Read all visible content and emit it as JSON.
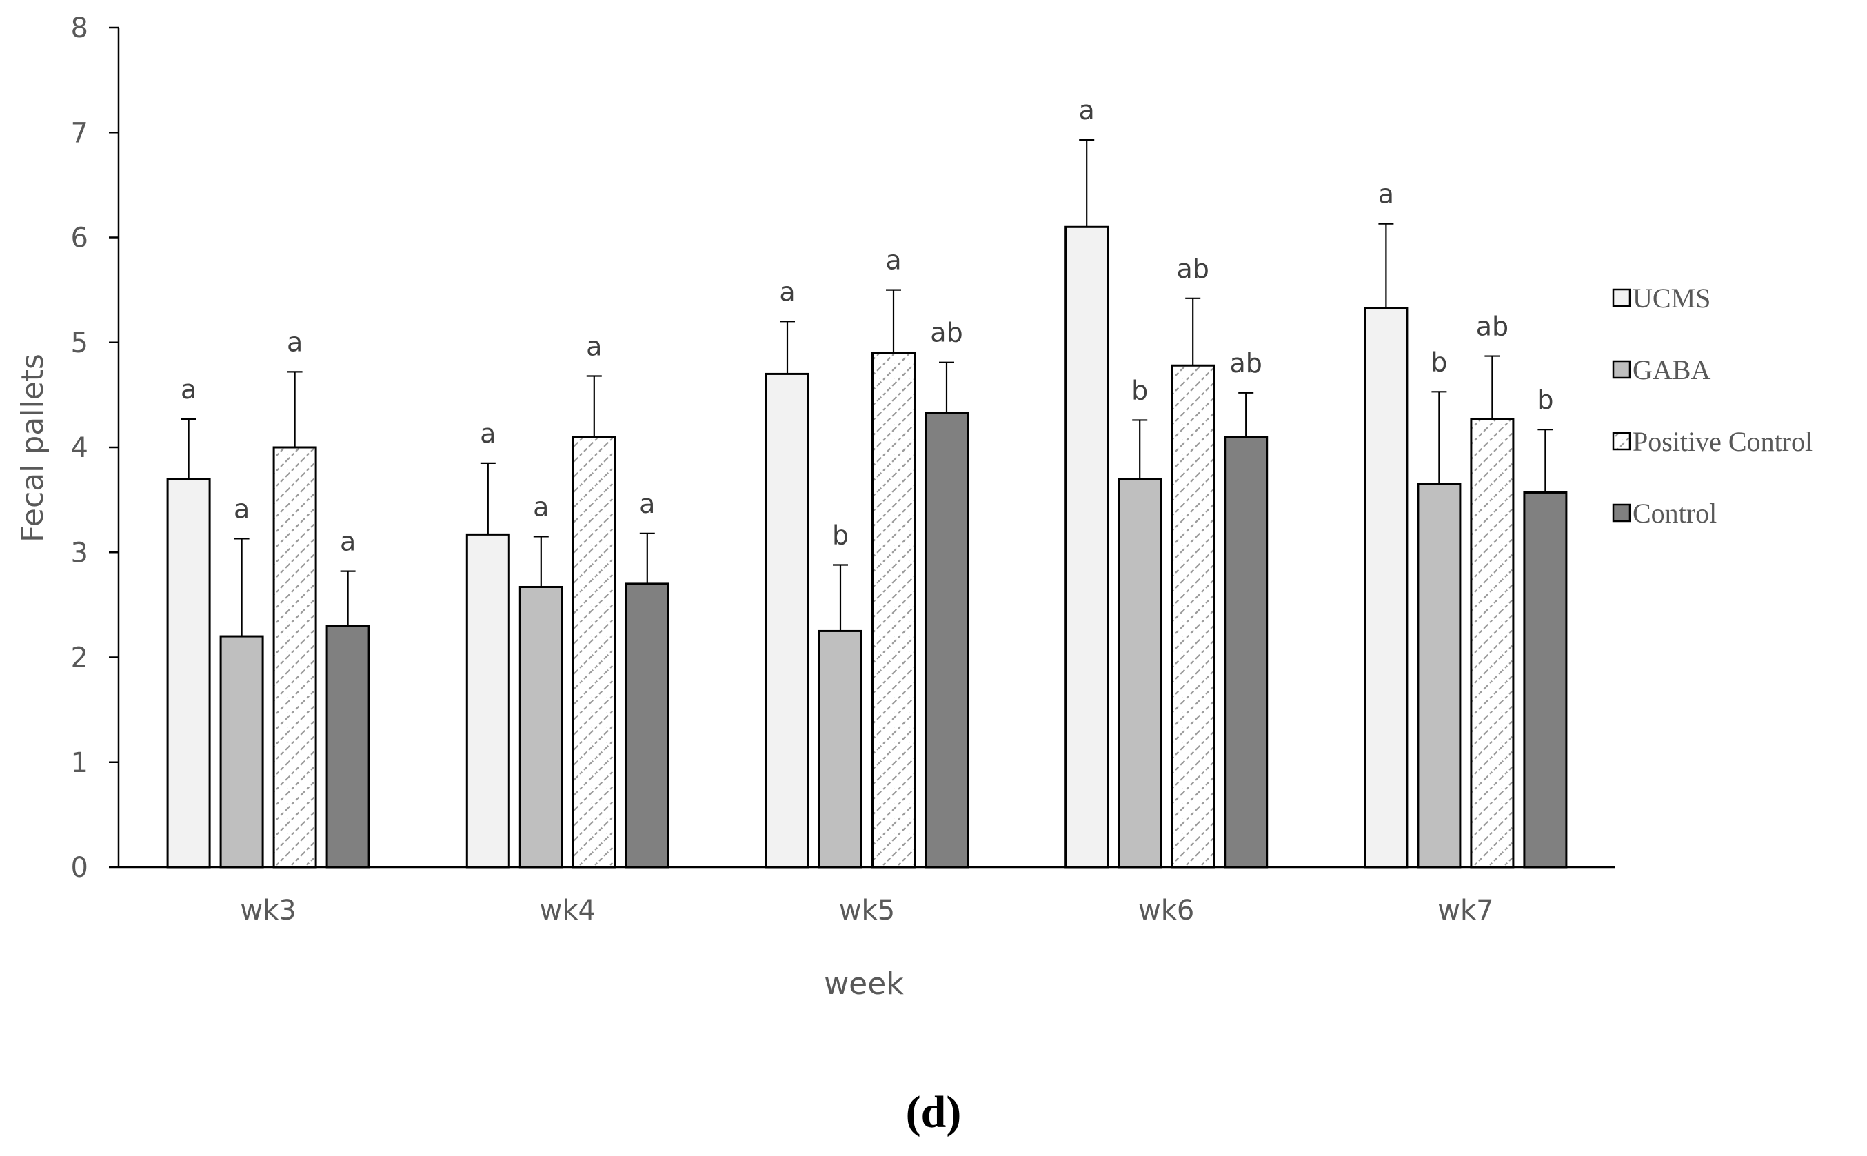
{
  "chart_data": {
    "type": "bar",
    "title": "",
    "xlabel": "week",
    "ylabel": "Fecal pallets",
    "ylim": [
      0,
      8
    ],
    "yticks": [
      "0",
      "1",
      "2",
      "3",
      "4",
      "5",
      "6",
      "7",
      "8"
    ],
    "categories": [
      "wk3",
      "wk4",
      "wk5",
      "wk6",
      "wk7"
    ],
    "grid": false,
    "legend_position": "right",
    "series": [
      {
        "name": "UCMS",
        "fill": "#f2f2f2",
        "pattern": "none",
        "values": [
          3.7,
          3.17,
          4.7,
          6.1,
          5.33
        ],
        "errors": [
          0.57,
          0.68,
          0.5,
          0.83,
          0.8
        ],
        "significance": [
          "a",
          "a",
          "a",
          "a",
          "a"
        ]
      },
      {
        "name": "GABA",
        "fill": "#bfbfbf",
        "pattern": "none",
        "values": [
          2.2,
          2.67,
          2.25,
          3.7,
          3.65
        ],
        "errors": [
          0.93,
          0.48,
          0.63,
          0.56,
          0.88
        ],
        "significance": [
          "a",
          "a",
          "b",
          "b",
          "b"
        ]
      },
      {
        "name": "Positive Control",
        "fill": "#ffffff",
        "pattern": "diagonal-hatch",
        "values": [
          4.0,
          4.1,
          4.9,
          4.78,
          4.27
        ],
        "errors": [
          0.72,
          0.58,
          0.6,
          0.64,
          0.6
        ],
        "significance": [
          "a",
          "a",
          "a",
          "ab",
          "ab"
        ]
      },
      {
        "name": "Control",
        "fill": "#808080",
        "pattern": "none",
        "values": [
          2.3,
          2.7,
          4.33,
          4.1,
          3.57
        ],
        "errors": [
          0.52,
          0.48,
          0.48,
          0.42,
          0.6
        ],
        "significance": [
          "a",
          "a",
          "ab",
          "ab",
          "b"
        ]
      }
    ]
  },
  "panel_label": "(d)"
}
